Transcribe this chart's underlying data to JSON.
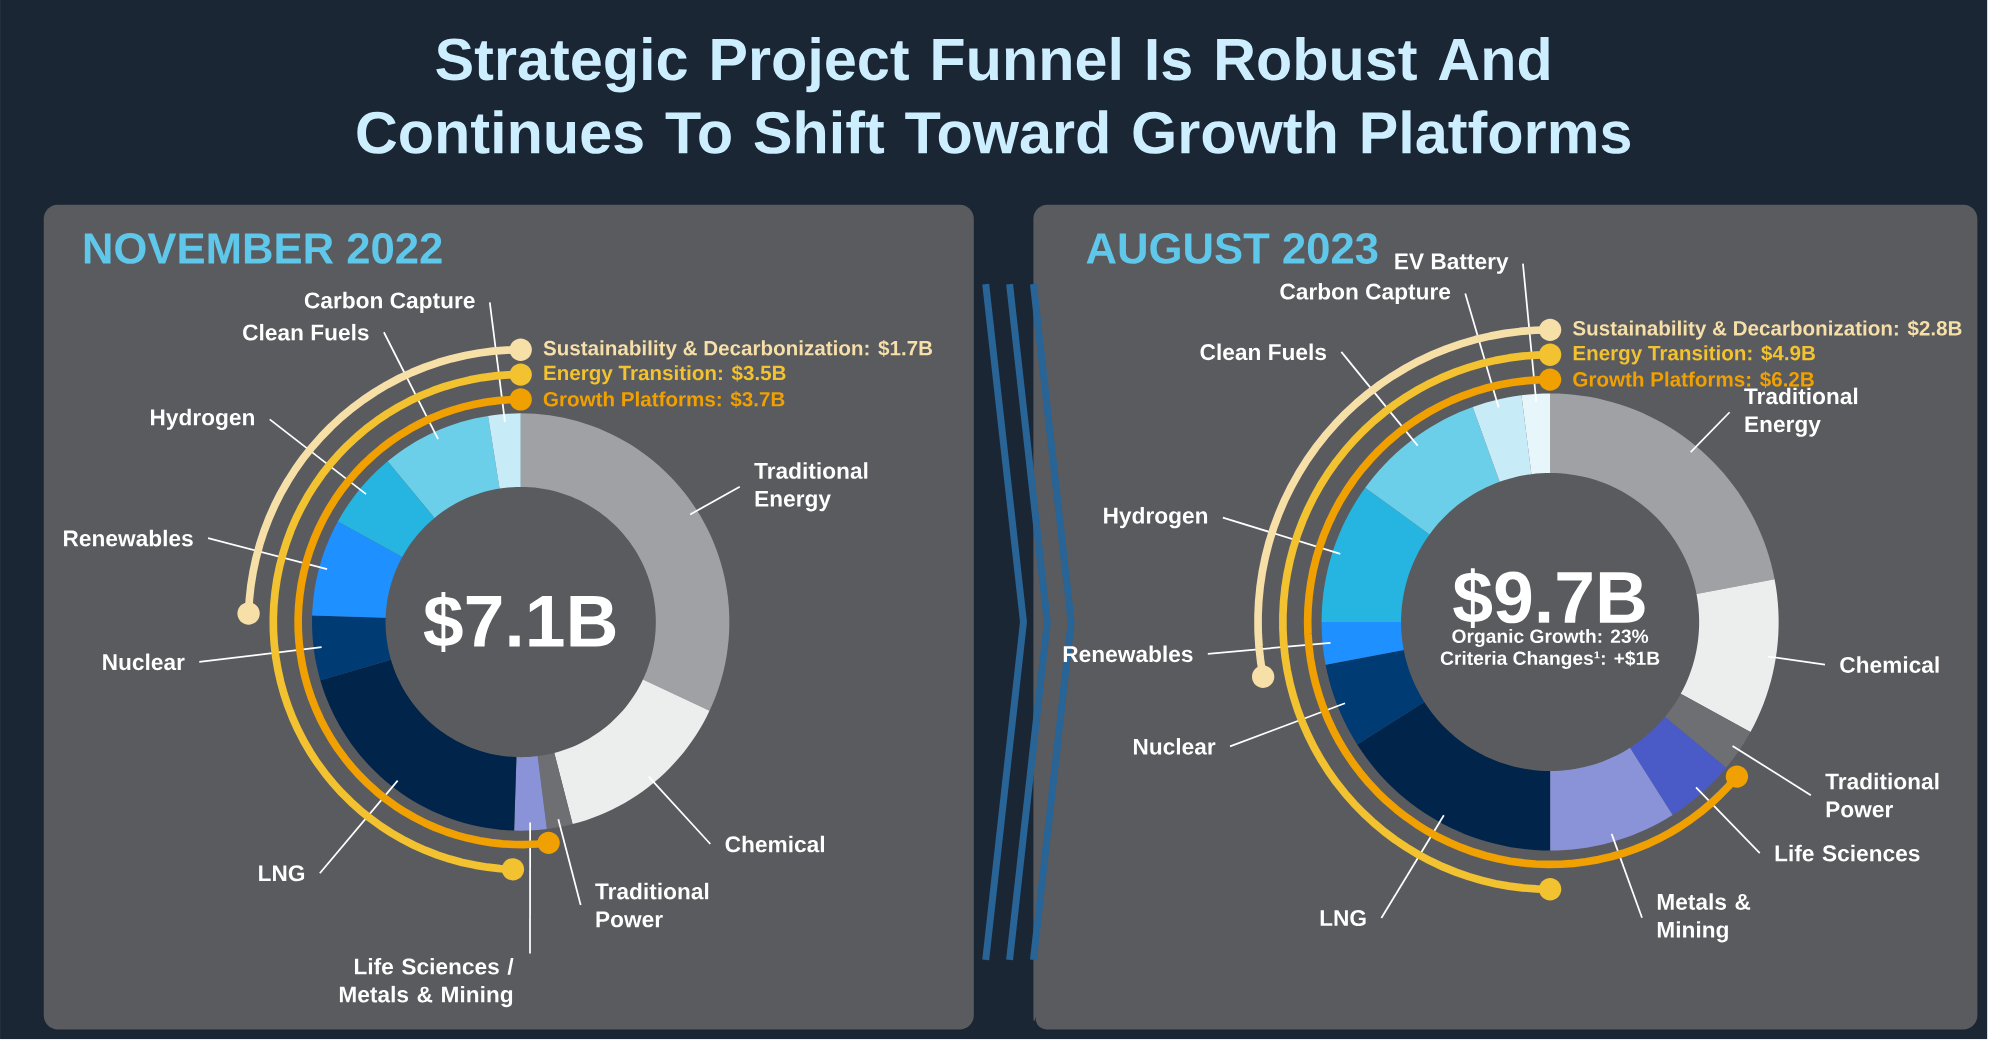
{
  "chart_data": [
    {
      "type": "donut",
      "title": "Strategic Project Funnel Is Robust And Continues To Shift Toward Growth Platforms",
      "subtitle": "NOVEMBER 2022",
      "categories": [
        "Traditional Energy",
        "Chemical",
        "Traditional Power",
        "Life Sciences / Metals & Mining",
        "LNG",
        "Nuclear",
        "Renewables",
        "Hydrogen",
        "Clean Fuels",
        "Carbon Capture"
      ],
      "values": [
        32,
        14,
        2,
        2.5,
        20,
        5,
        7.5,
        6,
        8.5,
        2.5
      ],
      "colors": [
        "#a0a1a5",
        "#eceeee",
        "#6e6f73",
        "#8a93d8",
        "#00244a",
        "#003b73",
        "#1e90ff",
        "#25b5e0",
        "#6ccfe9",
        "#c7ecf8"
      ],
      "annotations": [
        "$7.1B",
        {
          "text": "Sustainability & Decarbonization: $1.7B",
          "x": "Renewables"
        },
        {
          "text": "Energy Transition: $3.5B",
          "x": "LNG"
        },
        {
          "text": "Growth Platforms: $3.7B",
          "x": "Life Sciences / Metals & Mining"
        }
      ]
    },
    {
      "type": "donut",
      "subtitle": "AUGUST 2023",
      "categories": [
        "Traditional Energy",
        "Chemical",
        "Traditional Power",
        "Life Sciences",
        "Metals & Mining",
        "LNG",
        "Nuclear",
        "Renewables",
        "Hydrogen",
        "Clean Fuels",
        "Carbon Capture",
        "EV Battery"
      ],
      "values": [
        22,
        11,
        3,
        5,
        9,
        16,
        6,
        3,
        10,
        9.5,
        3.5,
        2
      ],
      "colors": [
        "#a0a1a5",
        "#eceeee",
        "#6e6f73",
        "#4a5bc7",
        "#8a93d8",
        "#00244a",
        "#003b73",
        "#1e90ff",
        "#25b5e0",
        "#6ccfe9",
        "#c7ecf8",
        "#e6f6fb"
      ],
      "annotations": [
        "$9.7B",
        "Organic Growth: 23%",
        "Criteria Changes¹: +$1B",
        {
          "text": "Sustainability & Decarbonization: $2.8B",
          "x": "Renewables"
        },
        {
          "text": "Energy Transition: $4.9B",
          "x": "LNG"
        },
        {
          "text": "Growth Platforms: $6.2B",
          "x": "Life Sciences"
        }
      ]
    }
  ]
}
